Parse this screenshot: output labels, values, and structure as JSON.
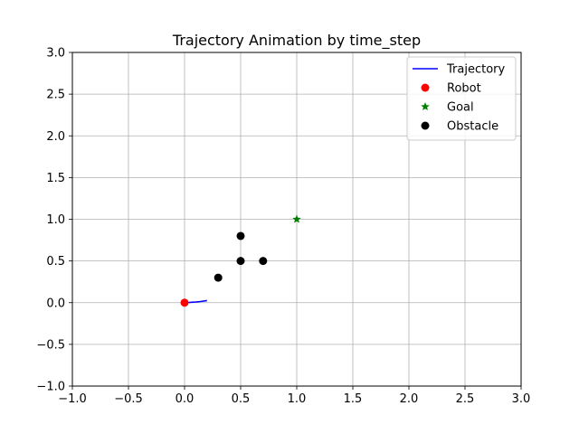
{
  "chart_data": {
    "type": "scatter",
    "title": "Trajectory Animation by time_step",
    "xlabel": "",
    "ylabel": "",
    "xlim": [
      -1.0,
      3.0
    ],
    "ylim": [
      -1.0,
      3.0
    ],
    "x_ticks": [
      -1.0,
      -0.5,
      0.0,
      0.5,
      1.0,
      1.5,
      2.0,
      2.5,
      3.0
    ],
    "y_ticks": [
      -1.0,
      -0.5,
      0.0,
      0.5,
      1.0,
      1.5,
      2.0,
      2.5,
      3.0
    ],
    "x_tick_labels": [
      "−1.0",
      "−0.5",
      "0.0",
      "0.5",
      "1.0",
      "1.5",
      "2.0",
      "2.5",
      "3.0"
    ],
    "y_tick_labels": [
      "−1.0",
      "−0.5",
      "0.0",
      "0.5",
      "1.0",
      "1.5",
      "2.0",
      "2.5",
      "3.0"
    ],
    "grid": true,
    "legend_position": "top-right",
    "series": [
      {
        "name": "Trajectory",
        "kind": "line",
        "color": "#0000ff",
        "x": [
          0.0,
          0.05,
          0.1,
          0.15,
          0.2
        ],
        "y": [
          0.0,
          0.003,
          0.008,
          0.015,
          0.025
        ]
      },
      {
        "name": "Robot",
        "kind": "marker-circle",
        "color": "#ff0000",
        "x": [
          0.0
        ],
        "y": [
          0.0
        ]
      },
      {
        "name": "Goal",
        "kind": "marker-star",
        "color": "#008000",
        "x": [
          1.0
        ],
        "y": [
          1.0
        ]
      },
      {
        "name": "Obstacle",
        "kind": "marker-circle",
        "color": "#000000",
        "x": [
          0.3,
          0.5,
          0.5,
          0.7
        ],
        "y": [
          0.3,
          0.5,
          0.8,
          0.5
        ]
      }
    ]
  }
}
